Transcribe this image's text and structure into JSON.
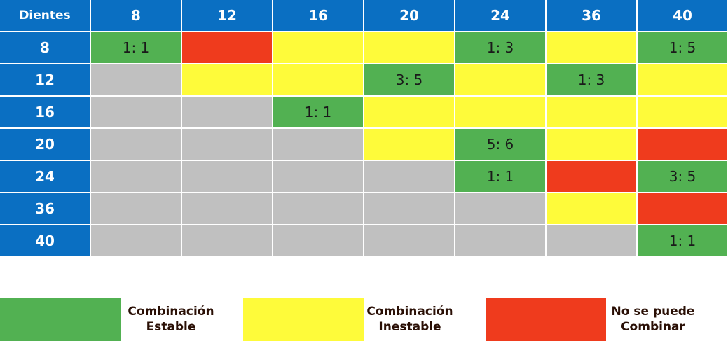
{
  "corner_label": "Dientes",
  "columns": [
    "8",
    "12",
    "16",
    "20",
    "24",
    "36",
    "40"
  ],
  "rows": [
    {
      "label": "8",
      "cells": [
        {
          "s": "g",
          "t": "1: 1"
        },
        {
          "s": "r",
          "t": ""
        },
        {
          "s": "y",
          "t": ""
        },
        {
          "s": "y",
          "t": ""
        },
        {
          "s": "g",
          "t": "1: 3"
        },
        {
          "s": "y",
          "t": ""
        },
        {
          "s": "g",
          "t": "1: 5"
        }
      ]
    },
    {
      "label": "12",
      "cells": [
        {
          "s": "x",
          "t": ""
        },
        {
          "s": "y",
          "t": ""
        },
        {
          "s": "y",
          "t": ""
        },
        {
          "s": "g",
          "t": "3: 5"
        },
        {
          "s": "y",
          "t": ""
        },
        {
          "s": "g",
          "t": "1: 3"
        },
        {
          "s": "y",
          "t": ""
        }
      ]
    },
    {
      "label": "16",
      "cells": [
        {
          "s": "x",
          "t": ""
        },
        {
          "s": "x",
          "t": ""
        },
        {
          "s": "g",
          "t": "1: 1"
        },
        {
          "s": "y",
          "t": ""
        },
        {
          "s": "y",
          "t": ""
        },
        {
          "s": "y",
          "t": ""
        },
        {
          "s": "y",
          "t": ""
        }
      ]
    },
    {
      "label": "20",
      "cells": [
        {
          "s": "x",
          "t": ""
        },
        {
          "s": "x",
          "t": ""
        },
        {
          "s": "x",
          "t": ""
        },
        {
          "s": "y",
          "t": ""
        },
        {
          "s": "g",
          "t": "5: 6"
        },
        {
          "s": "y",
          "t": ""
        },
        {
          "s": "r",
          "t": ""
        }
      ]
    },
    {
      "label": "24",
      "cells": [
        {
          "s": "x",
          "t": ""
        },
        {
          "s": "x",
          "t": ""
        },
        {
          "s": "x",
          "t": ""
        },
        {
          "s": "x",
          "t": ""
        },
        {
          "s": "g",
          "t": "1: 1"
        },
        {
          "s": "r",
          "t": ""
        },
        {
          "s": "g",
          "t": "3: 5"
        }
      ]
    },
    {
      "label": "36",
      "cells": [
        {
          "s": "x",
          "t": ""
        },
        {
          "s": "x",
          "t": ""
        },
        {
          "s": "x",
          "t": ""
        },
        {
          "s": "x",
          "t": ""
        },
        {
          "s": "x",
          "t": ""
        },
        {
          "s": "y",
          "t": ""
        },
        {
          "s": "r",
          "t": ""
        }
      ]
    },
    {
      "label": "40",
      "cells": [
        {
          "s": "x",
          "t": ""
        },
        {
          "s": "x",
          "t": ""
        },
        {
          "s": "x",
          "t": ""
        },
        {
          "s": "x",
          "t": ""
        },
        {
          "s": "x",
          "t": ""
        },
        {
          "s": "x",
          "t": ""
        },
        {
          "s": "g",
          "t": "1: 1"
        }
      ]
    }
  ],
  "colors": {
    "header": "#0a6fc2",
    "stable": "#52b152",
    "unstable": "#fefb3a",
    "impossible": "#ef3b1d",
    "na": "#c0c0c0"
  },
  "legend": {
    "stable": {
      "line1": "Combinación",
      "line2": "Estable"
    },
    "unstable": {
      "line1": "Combinación",
      "line2": "Inestable"
    },
    "impossible": {
      "line1": "No se puede",
      "line2": "Combinar"
    }
  }
}
